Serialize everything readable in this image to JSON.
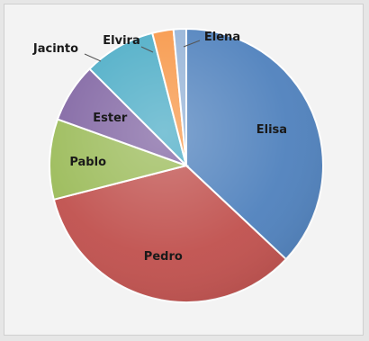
{
  "chart_data": {
    "type": "pie",
    "title": "",
    "start_angle_deg": 0,
    "direction": "clockwise",
    "slices": [
      {
        "name": "Elisa",
        "value": 37,
        "color": "#4f81bd",
        "label_pos": "inside"
      },
      {
        "name": "Pedro",
        "value": 34,
        "color": "#c0504d",
        "label_pos": "inside"
      },
      {
        "name": "Pablo",
        "value": 9.5,
        "color": "#9bbb59",
        "label_pos": "inside"
      },
      {
        "name": "Ester",
        "value": 7,
        "color": "#8064a2",
        "label_pos": "inside"
      },
      {
        "name": "Jacinto",
        "value": 8.5,
        "color": "#4bacc6",
        "label_pos": "outside"
      },
      {
        "name": "Elvira",
        "value": 2.5,
        "color": "#f79646",
        "label_pos": "outside"
      },
      {
        "name": "Elena",
        "value": 1.5,
        "color": "#95b3d7",
        "label_pos": "outside"
      }
    ]
  }
}
